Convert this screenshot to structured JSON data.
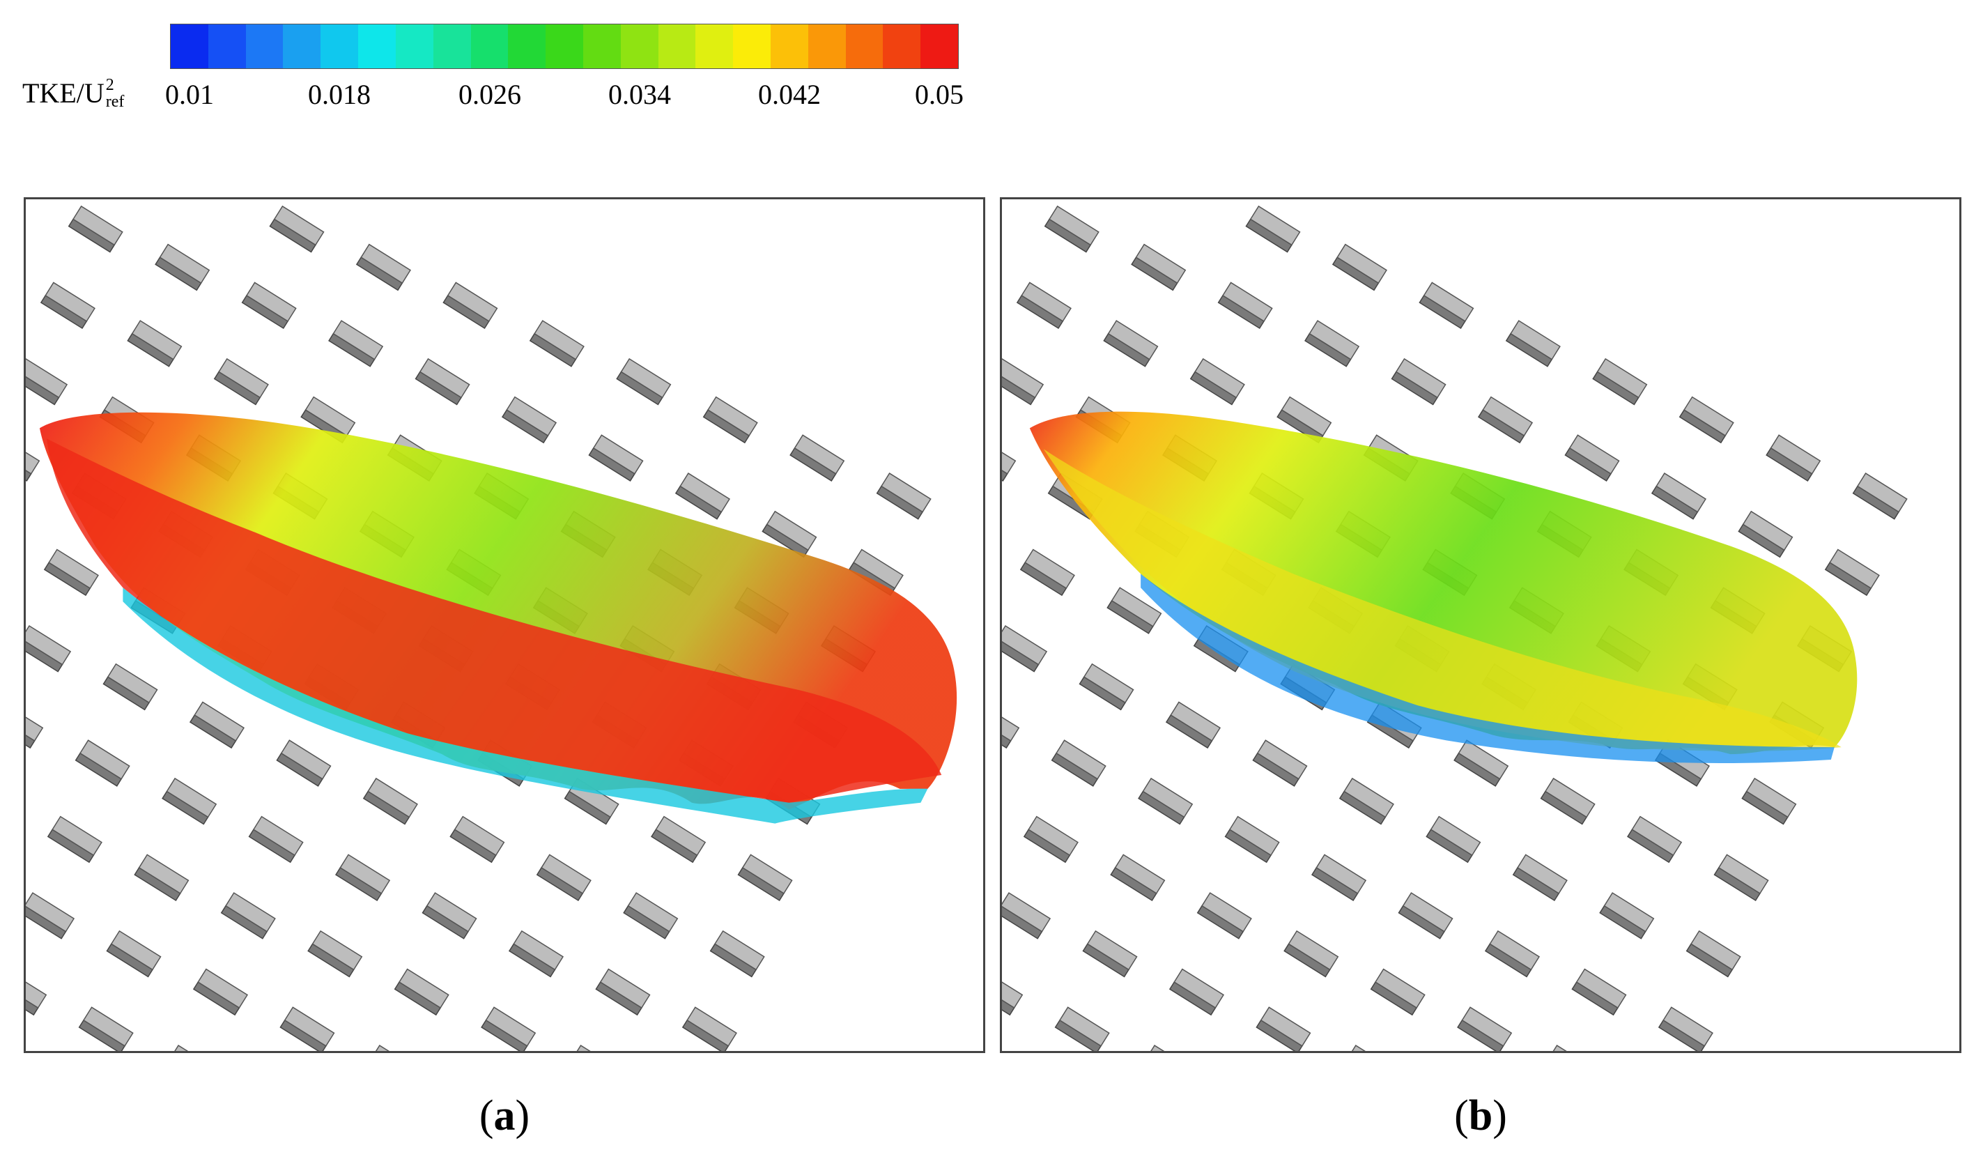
{
  "colorbar": {
    "variable": "TKE/U",
    "superscript": "2",
    "subscript": "ref",
    "tick_labels": [
      "0.01",
      "0.018",
      "0.026",
      "0.034",
      "0.042",
      "0.05"
    ],
    "colors": [
      "#0a2bf0",
      "#1550f5",
      "#1c78f5",
      "#1aa0f0",
      "#10c8ee",
      "#0ee6ea",
      "#15e8c4",
      "#18e39a",
      "#16df6c",
      "#22d836",
      "#3ad81a",
      "#63dc12",
      "#8fe312",
      "#b8ea14",
      "#e0ef10",
      "#fbec08",
      "#fcc008",
      "#fa9808",
      "#f66c0c",
      "#f14210",
      "#ee1a14"
    ]
  },
  "panels": [
    {
      "id": "a",
      "caption": "a"
    },
    {
      "id": "b",
      "caption": "b"
    }
  ]
}
